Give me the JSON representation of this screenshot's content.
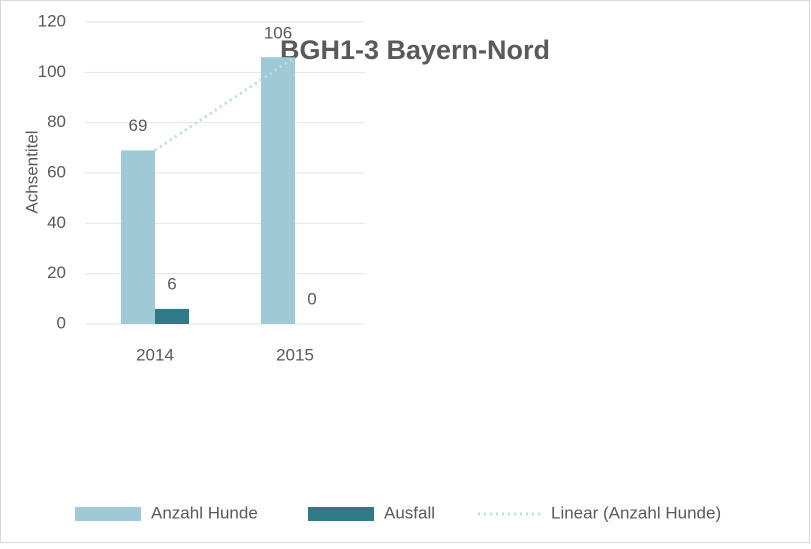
{
  "chart_data": {
    "type": "bar",
    "title": "BGH1-3 Bayern-Nord",
    "y_label": "Achsentitel",
    "categories": [
      "2014",
      "2015"
    ],
    "series": [
      {
        "name": "Anzahl Hunde",
        "color": "#9fc9d6",
        "values": [
          69,
          106
        ]
      },
      {
        "name": "Ausfall",
        "color": "#2f7a86",
        "values": [
          6,
          0
        ]
      },
      {
        "name": "Linear (Anzahl Hunde)",
        "type": "line",
        "style": "dotted",
        "color": "#b9dde2",
        "values": [
          69,
          106
        ]
      }
    ],
    "ylim": [
      0,
      120
    ],
    "yticks": [
      0,
      20,
      40,
      60,
      80,
      100,
      120
    ],
    "grid": true,
    "legend": "bottom"
  }
}
